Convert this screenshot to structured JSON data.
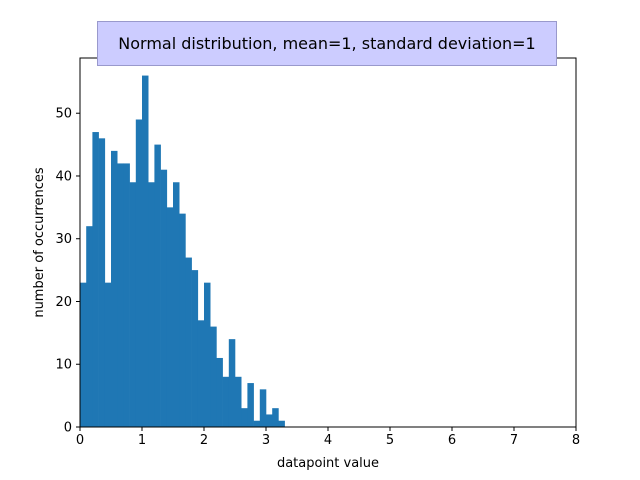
{
  "chart_data": {
    "type": "bar",
    "title": "Normal distribution, mean=1, standard deviation=1",
    "xlabel": "datapoint value",
    "ylabel": "number of occurrences",
    "xlim": [
      0,
      8
    ],
    "ylim": [
      0,
      58.8
    ],
    "xticks": [
      0,
      1,
      2,
      3,
      4,
      5,
      6,
      7,
      8
    ],
    "yticks": [
      0,
      10,
      20,
      30,
      40,
      50
    ],
    "bar_color": "#1f77b4",
    "grid": false,
    "bins": {
      "start": 0.0,
      "width": 0.1,
      "values": [
        23,
        32,
        47,
        46,
        23,
        44,
        42,
        42,
        39,
        49,
        56,
        39,
        45,
        41,
        35,
        39,
        34,
        27,
        25,
        17,
        23,
        16,
        11,
        8,
        14,
        8,
        3,
        7,
        1,
        6,
        2,
        3,
        1
      ]
    }
  }
}
